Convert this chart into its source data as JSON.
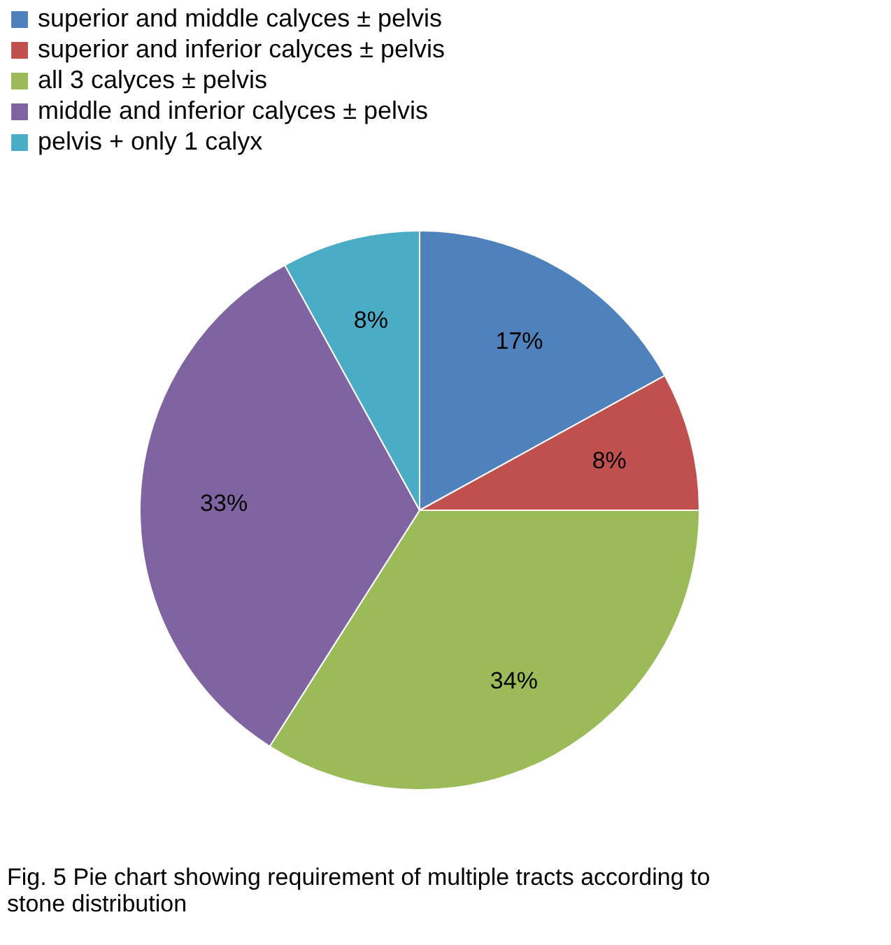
{
  "chart_data": {
    "type": "pie",
    "categories": [
      "superior and middle calyces ± pelvis",
      "superior and inferior calyces ± pelvis",
      "all 3 calyces ± pelvis",
      "middle and inferior calyces ± pelvis",
      "pelvis + only 1 calyx"
    ],
    "values": [
      17,
      8,
      34,
      33,
      8
    ],
    "colors": [
      "#4f81bd",
      "#c0504d",
      "#9bbb59",
      "#8064a2",
      "#4bacc6"
    ],
    "value_labels": [
      "17%",
      "8%",
      "34%",
      "33%",
      "8%"
    ],
    "legend": "top",
    "annotations": [
      "Fig. 5 Pie chart showing requirement of multiple tracts according to stone distribution"
    ]
  }
}
